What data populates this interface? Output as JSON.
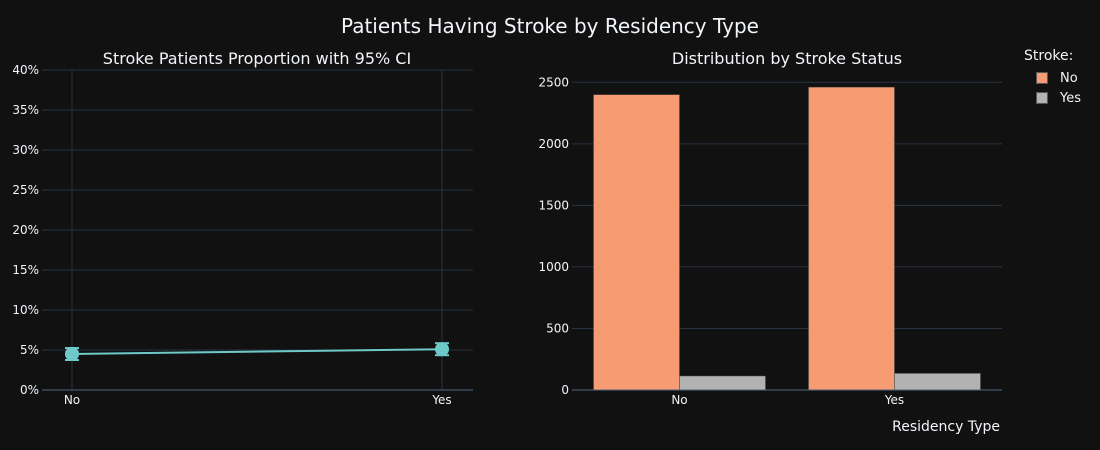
{
  "figure": {
    "title": "Patients Having Stroke by Residency Type",
    "background": "#111111",
    "grid_color": "#283442",
    "text_color": "#f2f5fa"
  },
  "chart_data": [
    {
      "type": "line",
      "title": "Stroke Patients Proportion with 95% CI",
      "categories": [
        "No",
        "Yes"
      ],
      "values": [
        4.5,
        5.1
      ],
      "value_format": "percent",
      "ylim": [
        0,
        40
      ],
      "yticks": [
        0,
        5,
        10,
        15,
        20,
        25,
        30,
        35,
        40
      ],
      "ytick_labels": [
        "0%",
        "5%",
        "10%",
        "15%",
        "20%",
        "25%",
        "30%",
        "35%",
        "40%"
      ],
      "color": "#6ecac9",
      "grid": true
    },
    {
      "type": "bar",
      "title": "Distribution by Stroke Status",
      "categories": [
        "No",
        "Yes"
      ],
      "series": [
        {
          "name": "No",
          "values": [
            2400,
            2461
          ],
          "color": "#f79c72"
        },
        {
          "name": "Yes",
          "values": [
            114,
            135
          ],
          "color": "#b2b2b2"
        }
      ],
      "xlabel": "Residency Type",
      "ylim": [
        0,
        2600
      ],
      "yticks": [
        0,
        500,
        1000,
        1500,
        2000,
        2500
      ],
      "ytick_labels": [
        "0",
        "500",
        "1000",
        "1500",
        "2000",
        "2500"
      ],
      "legend_title": "Stroke:",
      "legend_position": "top-right",
      "grid": true
    }
  ]
}
